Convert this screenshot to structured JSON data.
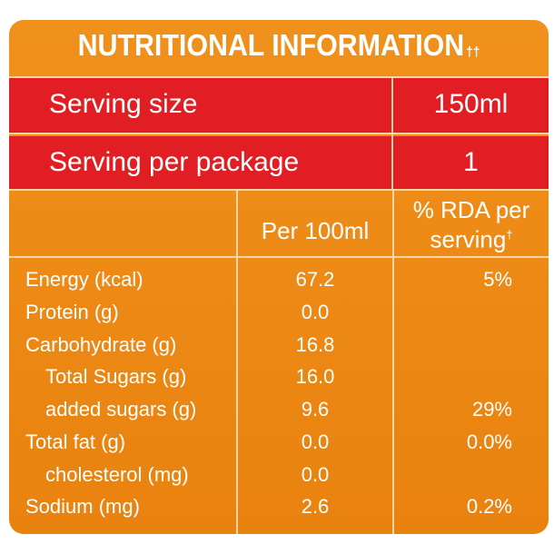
{
  "title": {
    "text": "NUTRITIONAL INFORMATION",
    "mark": "††"
  },
  "serving": {
    "size_label": "Serving size",
    "size_value": "150ml",
    "per_package_label": "Serving per package",
    "per_package_value": "1"
  },
  "columns": {
    "per_100": "Per 100ml",
    "rda_line1": "% RDA per",
    "rda_line2": "serving",
    "rda_mark": "†"
  },
  "rows": [
    {
      "name": "Energy (kcal)",
      "per_100ml": "67.2",
      "rda": "5%"
    },
    {
      "name": "Protein (g)",
      "per_100ml": "0.0",
      "rda": ""
    },
    {
      "name": "Carbohydrate (g)",
      "per_100ml": "16.8",
      "rda": ""
    },
    {
      "name": "Total Sugars (g)",
      "per_100ml": "16.0",
      "rda": ""
    },
    {
      "name": "added sugars (g)",
      "per_100ml": "9.6",
      "rda": "29%"
    },
    {
      "name": "Total fat (g)",
      "per_100ml": "0.0",
      "rda": "0.0%"
    },
    {
      "name": "cholesterol (mg)",
      "per_100ml": "0.0",
      "rda": ""
    },
    {
      "name": "Sodium (mg)",
      "per_100ml": "2.6",
      "rda": "0.2%"
    }
  ],
  "colors": {
    "panel": "#ef8c18",
    "header_red": "#e01e23",
    "text": "#ffffff",
    "lines": "#fbd5a4"
  }
}
